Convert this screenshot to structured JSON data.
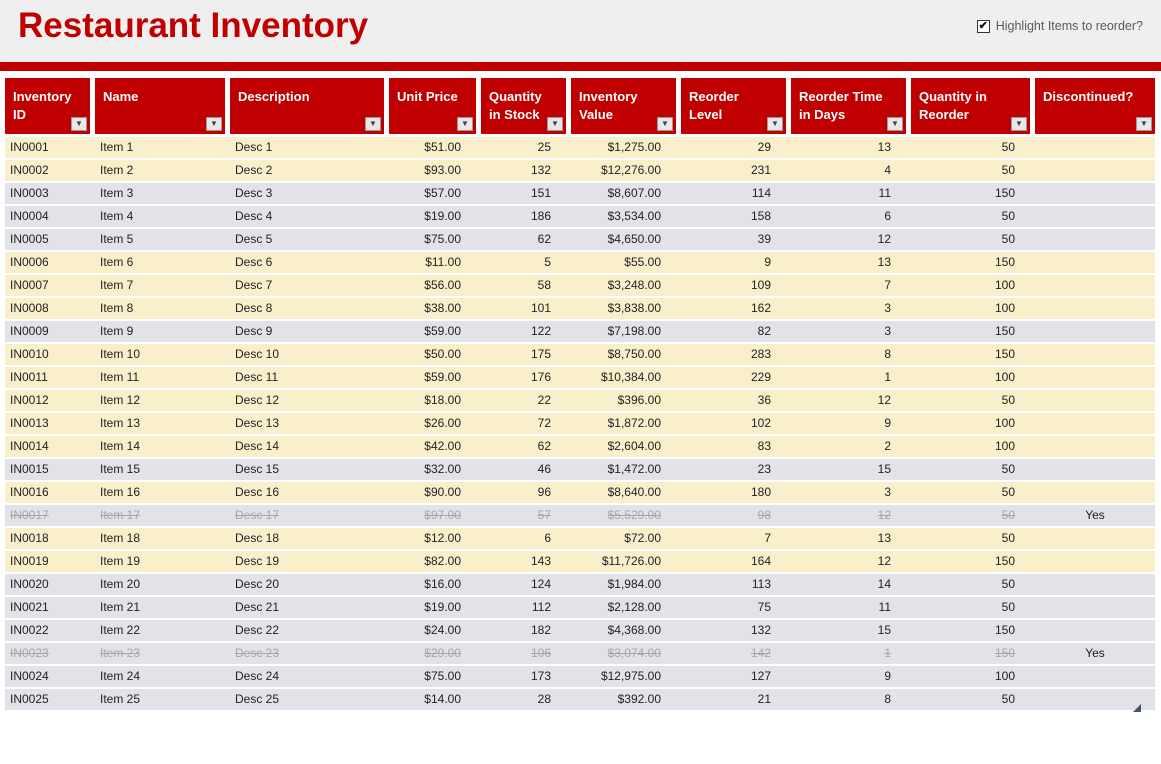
{
  "page": {
    "title": "Restaurant Inventory",
    "checkbox_label": "Highlight Items to reorder?",
    "checkbox_checked": true
  },
  "colors": {
    "accent_red": "#c00000",
    "reorder_highlight_row": "#faefcb",
    "normal_row": "#e1e3e9",
    "discontinued_text": "#a6a6a6",
    "header_text": "#ffffff",
    "title_band": "#efefef"
  },
  "icons": {
    "filter_dropdown": "chevron-down",
    "checkbox_check": "check-mark",
    "resize_corner": "table-resize-triangle"
  },
  "table": {
    "columns": [
      {
        "label": "Inventory ID"
      },
      {
        "label": "Name"
      },
      {
        "label": "Description"
      },
      {
        "label": "Unit Price"
      },
      {
        "label": "Quantity in Stock"
      },
      {
        "label": "Inventory Value"
      },
      {
        "label": "Reorder Level"
      },
      {
        "label": "Reorder Time in Days"
      },
      {
        "label": "Quantity in Reorder"
      },
      {
        "label": "Discontinued?"
      }
    ],
    "rows": [
      {
        "id": "IN0001",
        "name": "Item 1",
        "desc": "Desc 1",
        "unit_price": "$51.00",
        "qty_stock": "25",
        "inv_value": "$1,275.00",
        "reorder_level": "29",
        "reorder_time": "13",
        "qty_reorder": "50",
        "discontinued": "",
        "state": "reorder"
      },
      {
        "id": "IN0002",
        "name": "Item 2",
        "desc": "Desc 2",
        "unit_price": "$93.00",
        "qty_stock": "132",
        "inv_value": "$12,276.00",
        "reorder_level": "231",
        "reorder_time": "4",
        "qty_reorder": "50",
        "discontinued": "",
        "state": "reorder"
      },
      {
        "id": "IN0003",
        "name": "Item 3",
        "desc": "Desc 3",
        "unit_price": "$57.00",
        "qty_stock": "151",
        "inv_value": "$8,607.00",
        "reorder_level": "114",
        "reorder_time": "11",
        "qty_reorder": "150",
        "discontinued": "",
        "state": "normal"
      },
      {
        "id": "IN0004",
        "name": "Item 4",
        "desc": "Desc 4",
        "unit_price": "$19.00",
        "qty_stock": "186",
        "inv_value": "$3,534.00",
        "reorder_level": "158",
        "reorder_time": "6",
        "qty_reorder": "50",
        "discontinued": "",
        "state": "normal"
      },
      {
        "id": "IN0005",
        "name": "Item 5",
        "desc": "Desc 5",
        "unit_price": "$75.00",
        "qty_stock": "62",
        "inv_value": "$4,650.00",
        "reorder_level": "39",
        "reorder_time": "12",
        "qty_reorder": "50",
        "discontinued": "",
        "state": "normal"
      },
      {
        "id": "IN0006",
        "name": "Item 6",
        "desc": "Desc 6",
        "unit_price": "$11.00",
        "qty_stock": "5",
        "inv_value": "$55.00",
        "reorder_level": "9",
        "reorder_time": "13",
        "qty_reorder": "150",
        "discontinued": "",
        "state": "reorder"
      },
      {
        "id": "IN0007",
        "name": "Item 7",
        "desc": "Desc 7",
        "unit_price": "$56.00",
        "qty_stock": "58",
        "inv_value": "$3,248.00",
        "reorder_level": "109",
        "reorder_time": "7",
        "qty_reorder": "100",
        "discontinued": "",
        "state": "reorder"
      },
      {
        "id": "IN0008",
        "name": "Item 8",
        "desc": "Desc 8",
        "unit_price": "$38.00",
        "qty_stock": "101",
        "inv_value": "$3,838.00",
        "reorder_level": "162",
        "reorder_time": "3",
        "qty_reorder": "100",
        "discontinued": "",
        "state": "reorder"
      },
      {
        "id": "IN0009",
        "name": "Item 9",
        "desc": "Desc 9",
        "unit_price": "$59.00",
        "qty_stock": "122",
        "inv_value": "$7,198.00",
        "reorder_level": "82",
        "reorder_time": "3",
        "qty_reorder": "150",
        "discontinued": "",
        "state": "normal"
      },
      {
        "id": "IN0010",
        "name": "Item 10",
        "desc": "Desc 10",
        "unit_price": "$50.00",
        "qty_stock": "175",
        "inv_value": "$8,750.00",
        "reorder_level": "283",
        "reorder_time": "8",
        "qty_reorder": "150",
        "discontinued": "",
        "state": "reorder"
      },
      {
        "id": "IN0011",
        "name": "Item 11",
        "desc": "Desc 11",
        "unit_price": "$59.00",
        "qty_stock": "176",
        "inv_value": "$10,384.00",
        "reorder_level": "229",
        "reorder_time": "1",
        "qty_reorder": "100",
        "discontinued": "",
        "state": "reorder"
      },
      {
        "id": "IN0012",
        "name": "Item 12",
        "desc": "Desc 12",
        "unit_price": "$18.00",
        "qty_stock": "22",
        "inv_value": "$396.00",
        "reorder_level": "36",
        "reorder_time": "12",
        "qty_reorder": "50",
        "discontinued": "",
        "state": "reorder"
      },
      {
        "id": "IN0013",
        "name": "Item 13",
        "desc": "Desc 13",
        "unit_price": "$26.00",
        "qty_stock": "72",
        "inv_value": "$1,872.00",
        "reorder_level": "102",
        "reorder_time": "9",
        "qty_reorder": "100",
        "discontinued": "",
        "state": "reorder"
      },
      {
        "id": "IN0014",
        "name": "Item 14",
        "desc": "Desc 14",
        "unit_price": "$42.00",
        "qty_stock": "62",
        "inv_value": "$2,604.00",
        "reorder_level": "83",
        "reorder_time": "2",
        "qty_reorder": "100",
        "discontinued": "",
        "state": "reorder"
      },
      {
        "id": "IN0015",
        "name": "Item 15",
        "desc": "Desc 15",
        "unit_price": "$32.00",
        "qty_stock": "46",
        "inv_value": "$1,472.00",
        "reorder_level": "23",
        "reorder_time": "15",
        "qty_reorder": "50",
        "discontinued": "",
        "state": "normal"
      },
      {
        "id": "IN0016",
        "name": "Item 16",
        "desc": "Desc 16",
        "unit_price": "$90.00",
        "qty_stock": "96",
        "inv_value": "$8,640.00",
        "reorder_level": "180",
        "reorder_time": "3",
        "qty_reorder": "50",
        "discontinued": "",
        "state": "reorder"
      },
      {
        "id": "IN0017",
        "name": "Item 17",
        "desc": "Desc 17",
        "unit_price": "$97.00",
        "qty_stock": "57",
        "inv_value": "$5,529.00",
        "reorder_level": "98",
        "reorder_time": "12",
        "qty_reorder": "50",
        "discontinued": "Yes",
        "state": "discontinued"
      },
      {
        "id": "IN0018",
        "name": "Item 18",
        "desc": "Desc 18",
        "unit_price": "$12.00",
        "qty_stock": "6",
        "inv_value": "$72.00",
        "reorder_level": "7",
        "reorder_time": "13",
        "qty_reorder": "50",
        "discontinued": "",
        "state": "reorder"
      },
      {
        "id": "IN0019",
        "name": "Item 19",
        "desc": "Desc 19",
        "unit_price": "$82.00",
        "qty_stock": "143",
        "inv_value": "$11,726.00",
        "reorder_level": "164",
        "reorder_time": "12",
        "qty_reorder": "150",
        "discontinued": "",
        "state": "reorder"
      },
      {
        "id": "IN0020",
        "name": "Item 20",
        "desc": "Desc 20",
        "unit_price": "$16.00",
        "qty_stock": "124",
        "inv_value": "$1,984.00",
        "reorder_level": "113",
        "reorder_time": "14",
        "qty_reorder": "50",
        "discontinued": "",
        "state": "normal"
      },
      {
        "id": "IN0021",
        "name": "Item 21",
        "desc": "Desc 21",
        "unit_price": "$19.00",
        "qty_stock": "112",
        "inv_value": "$2,128.00",
        "reorder_level": "75",
        "reorder_time": "11",
        "qty_reorder": "50",
        "discontinued": "",
        "state": "normal"
      },
      {
        "id": "IN0022",
        "name": "Item 22",
        "desc": "Desc 22",
        "unit_price": "$24.00",
        "qty_stock": "182",
        "inv_value": "$4,368.00",
        "reorder_level": "132",
        "reorder_time": "15",
        "qty_reorder": "150",
        "discontinued": "",
        "state": "normal"
      },
      {
        "id": "IN0023",
        "name": "Item 23",
        "desc": "Desc 23",
        "unit_price": "$29.00",
        "qty_stock": "106",
        "inv_value": "$3,074.00",
        "reorder_level": "142",
        "reorder_time": "1",
        "qty_reorder": "150",
        "discontinued": "Yes",
        "state": "discontinued"
      },
      {
        "id": "IN0024",
        "name": "Item 24",
        "desc": "Desc 24",
        "unit_price": "$75.00",
        "qty_stock": "173",
        "inv_value": "$12,975.00",
        "reorder_level": "127",
        "reorder_time": "9",
        "qty_reorder": "100",
        "discontinued": "",
        "state": "normal"
      },
      {
        "id": "IN0025",
        "name": "Item 25",
        "desc": "Desc 25",
        "unit_price": "$14.00",
        "qty_stock": "28",
        "inv_value": "$392.00",
        "reorder_level": "21",
        "reorder_time": "8",
        "qty_reorder": "50",
        "discontinued": "",
        "state": "normal"
      }
    ]
  }
}
